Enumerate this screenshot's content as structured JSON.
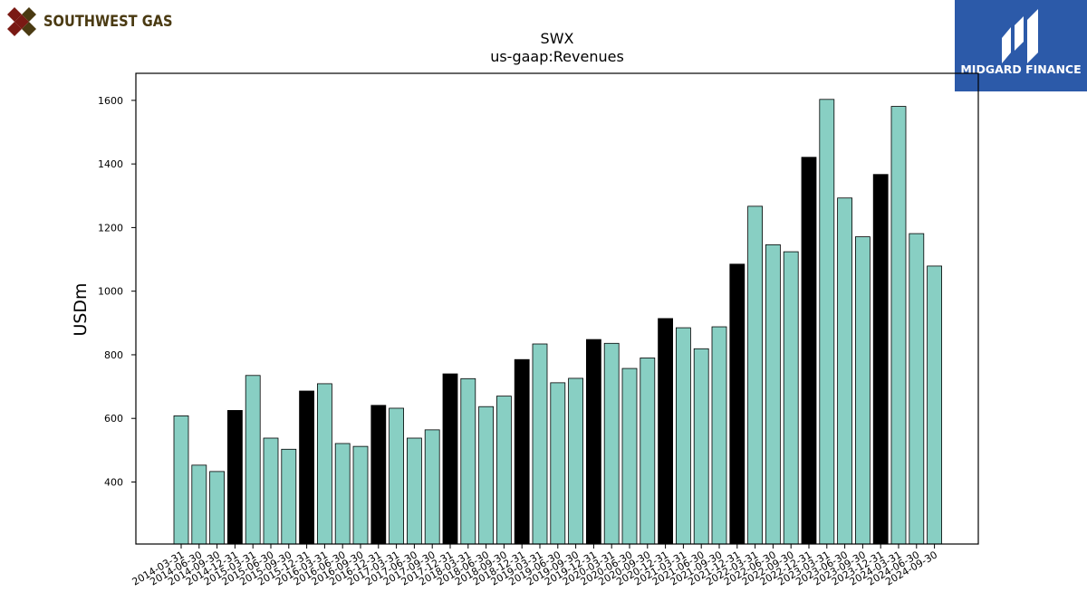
{
  "logos": {
    "left_text": "SOUTHWEST GAS",
    "right_text": "MIDGARD FINANCE"
  },
  "colors": {
    "bar_default": "#88cfc3",
    "bar_highlight": "#000000",
    "right_logo_bg": "#2c5aa9",
    "left_logo_text": "#4a3a12",
    "left_logo_mark": "#7a1a14"
  },
  "chart_data": {
    "type": "bar",
    "title": "SWX",
    "subtitle": "us-gaap:Revenues",
    "xlabel": "",
    "ylabel": "USDm",
    "ylim": [
      205,
      1685
    ],
    "yticks": [
      400,
      600,
      800,
      1000,
      1200,
      1400,
      1600
    ],
    "grid": false,
    "categories": [
      "2014-03-31",
      "2014-06-30",
      "2014-09-30",
      "2014-12-31",
      "2015-03-31",
      "2015-06-30",
      "2015-09-30",
      "2015-12-31",
      "2016-03-31",
      "2016-06-30",
      "2016-09-30",
      "2016-12-31",
      "2017-03-31",
      "2017-06-30",
      "2017-09-30",
      "2017-12-31",
      "2018-03-31",
      "2018-06-30",
      "2018-09-30",
      "2018-12-31",
      "2019-03-31",
      "2019-06-30",
      "2019-09-30",
      "2019-12-31",
      "2020-03-31",
      "2020-06-30",
      "2020-09-30",
      "2020-12-31",
      "2021-03-31",
      "2021-06-30",
      "2021-09-30",
      "2021-12-31",
      "2022-03-31",
      "2022-06-30",
      "2022-09-30",
      "2022-12-31",
      "2023-03-31",
      "2023-06-30",
      "2023-09-30",
      "2023-12-31",
      "2024-03-31",
      "2024-06-30",
      "2024-09-30"
    ],
    "values": [
      608,
      453,
      433,
      625,
      735,
      538,
      503,
      686,
      709,
      521,
      512,
      641,
      632,
      538,
      564,
      740,
      725,
      637,
      670,
      785,
      834,
      712,
      726,
      848,
      836,
      757,
      790,
      914,
      885,
      819,
      888,
      1085,
      1267,
      1146,
      1124,
      1421,
      1603,
      1293,
      1171,
      1367,
      1581,
      1181,
      1079
    ],
    "highlighted": [
      false,
      false,
      false,
      true,
      false,
      false,
      false,
      true,
      false,
      false,
      false,
      true,
      false,
      false,
      false,
      true,
      false,
      false,
      false,
      true,
      false,
      false,
      false,
      true,
      false,
      false,
      false,
      true,
      false,
      false,
      false,
      true,
      false,
      false,
      false,
      true,
      false,
      false,
      false,
      true,
      false,
      false,
      false
    ]
  }
}
